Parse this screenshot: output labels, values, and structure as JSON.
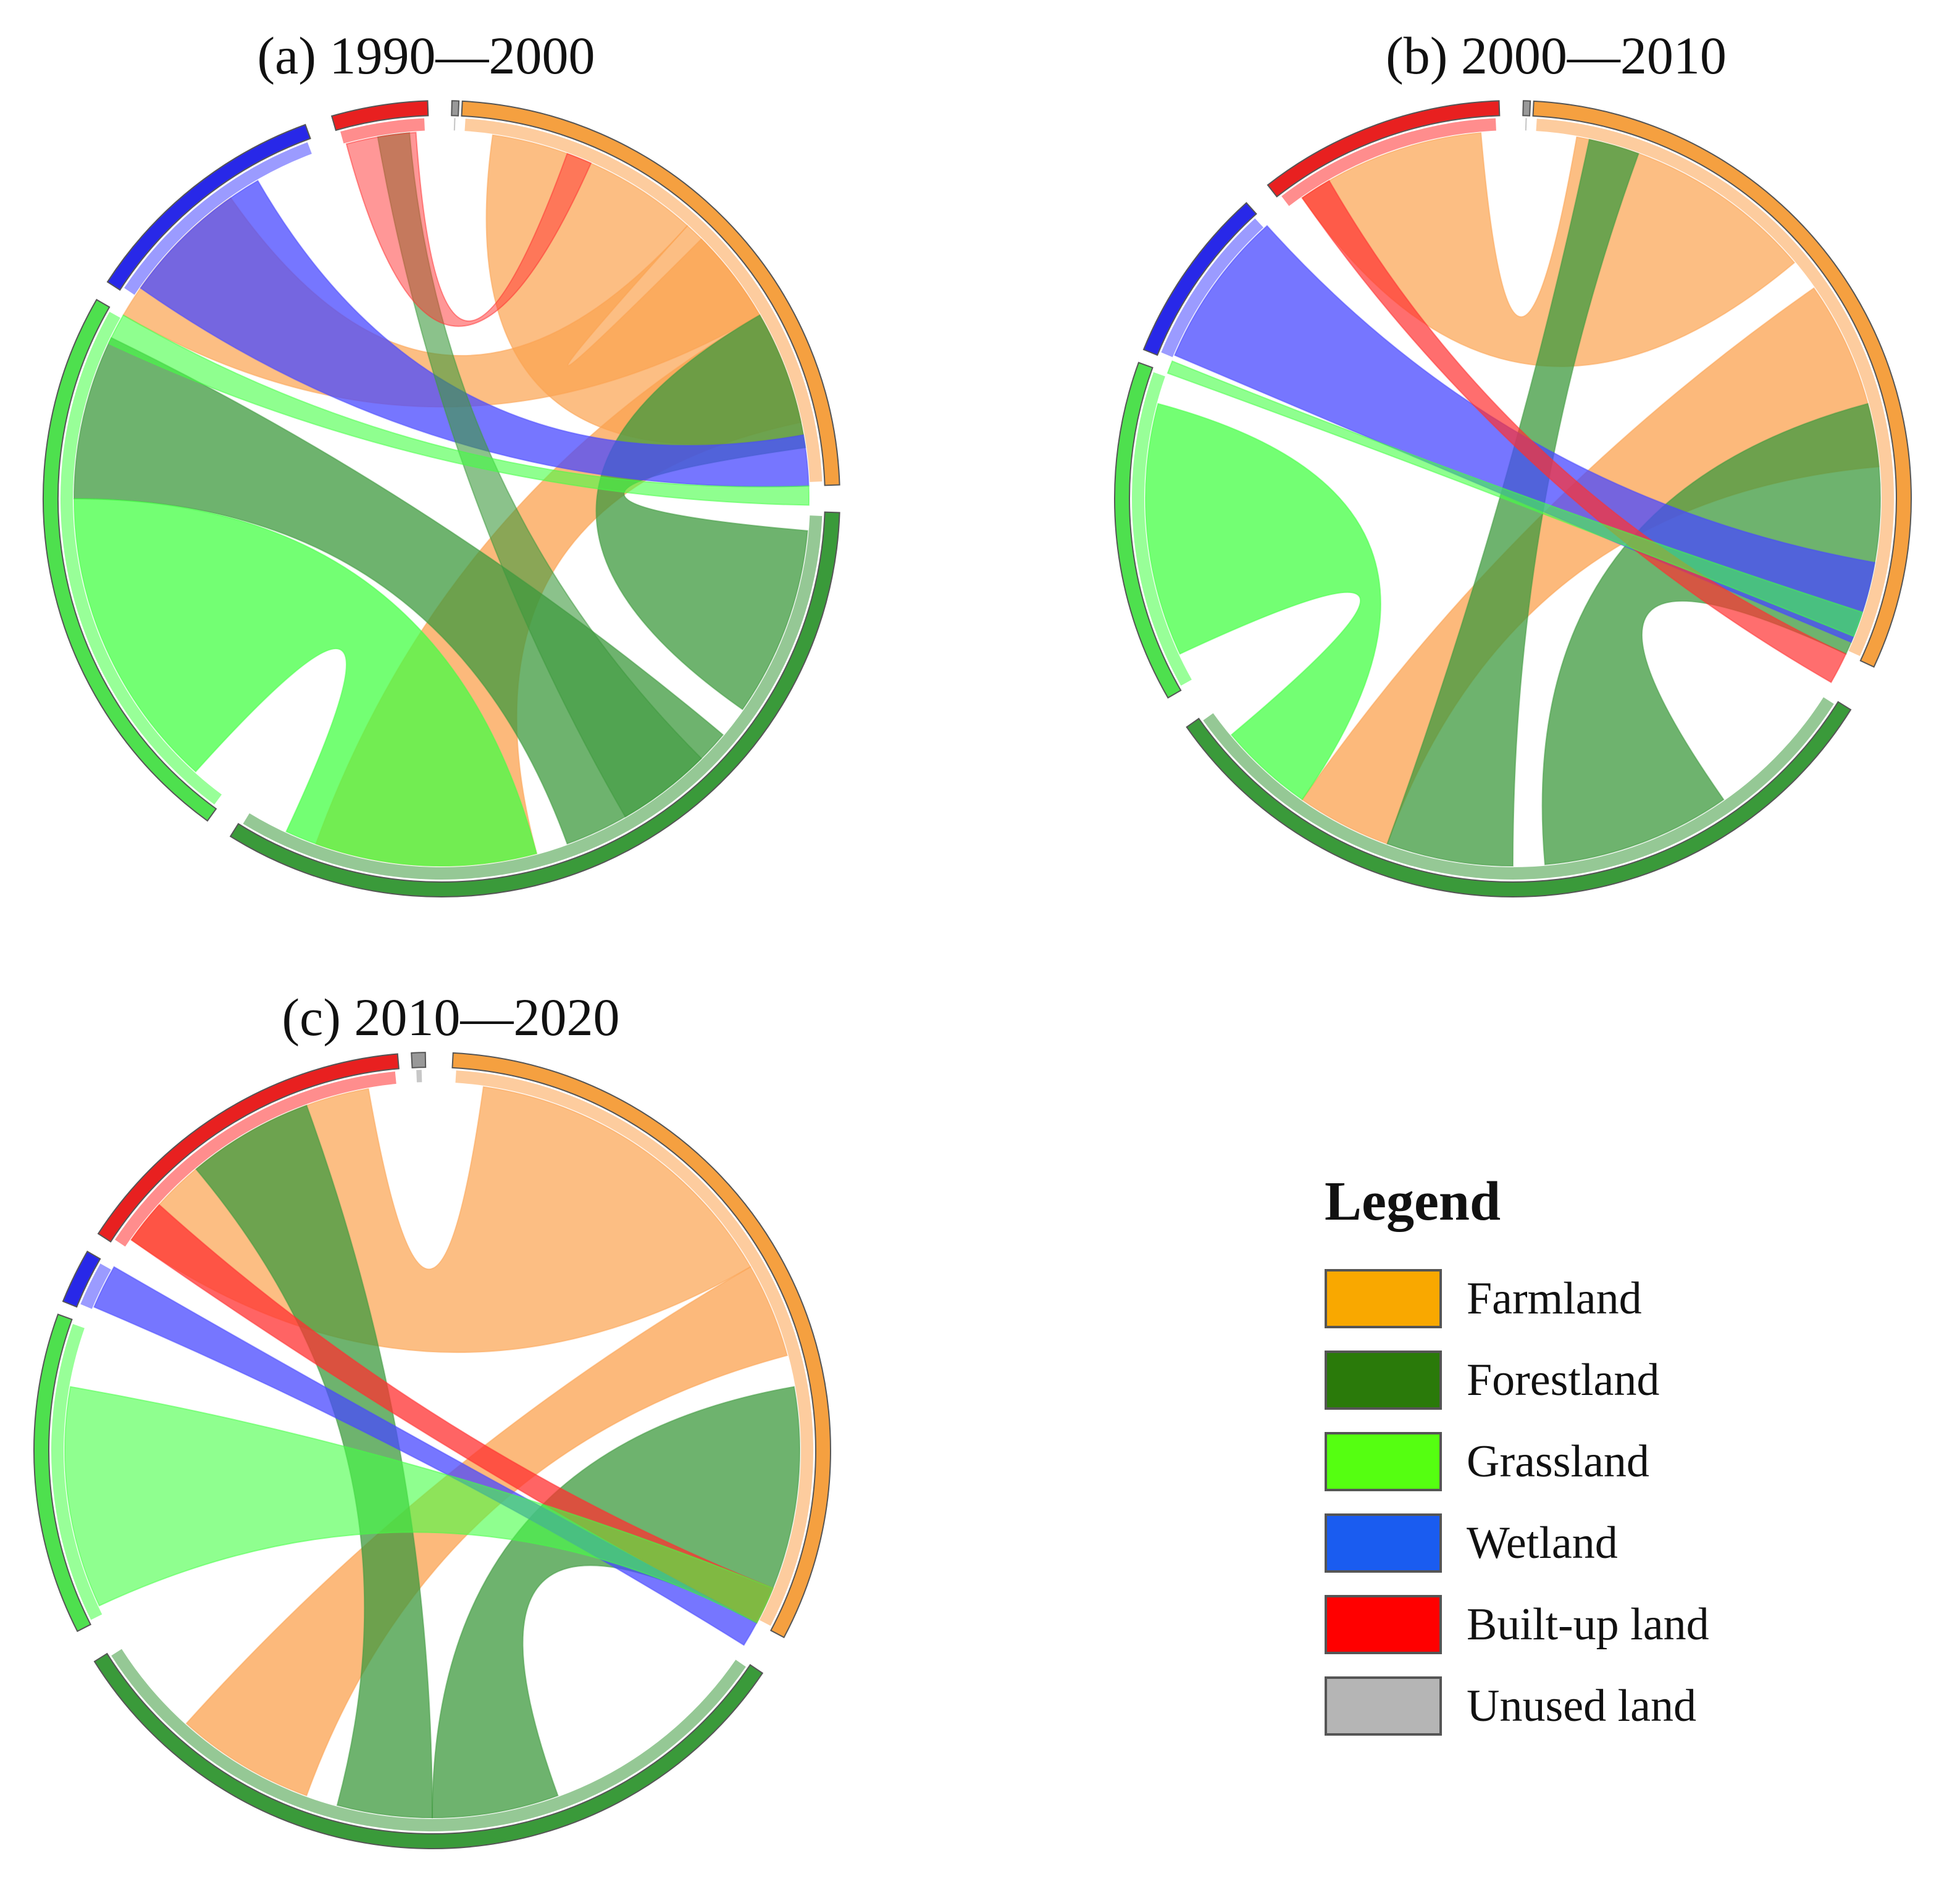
{
  "figure": {
    "panels": [
      {
        "id": "a",
        "title": "(a) 1990—2000"
      },
      {
        "id": "b",
        "title": "(b) 2000—2010"
      },
      {
        "id": "c",
        "title": "(c) 2010—2020"
      }
    ]
  },
  "legend": {
    "title": "Legend",
    "items": [
      {
        "label": "Farmland",
        "color": "#F9A800"
      },
      {
        "label": "Forestland",
        "color": "#2A7A0A"
      },
      {
        "label": "Grassland",
        "color": "#55FF11"
      },
      {
        "label": "Wetland",
        "color": "#1A5CF0"
      },
      {
        "label": "Built-up land",
        "color": "#FF0000"
      },
      {
        "label": "Unused land",
        "color": "#B5B5B5"
      }
    ]
  },
  "colors": {
    "farmland_ring": "#F5A040",
    "farmland_ribbon": "#FBA24F",
    "forestland_ring": "#3A9A3A",
    "forestland_ribbon": "#3E9A3E",
    "grassland_ring": "#4EE04E",
    "grassland_ribbon": "#44FF44",
    "wetland_ring": "#2828E8",
    "wetland_ribbon": "#4848FF",
    "builtup_ring": "#E82020",
    "builtup_ribbon": "#FF3030",
    "unused_ring": "#999999"
  }
}
